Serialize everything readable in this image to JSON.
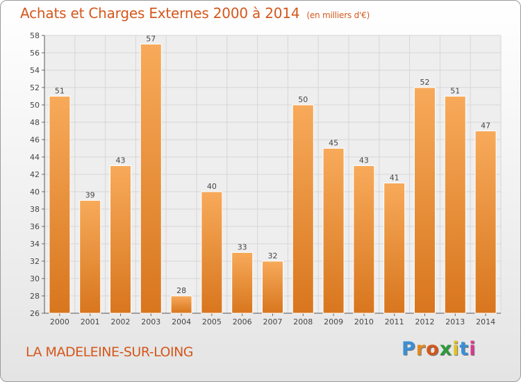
{
  "title": "Achats et Charges Externes 2000 à 2014",
  "subtitle": "(en milliers d'€)",
  "place": "LA MADELEINE-SUR-LOING",
  "logo": {
    "text": "Proxiti",
    "letter_colors": [
      "#3a8fd6",
      "#e2891f",
      "#d4571c",
      "#2e9a3a",
      "#e2c21f",
      "#3a8fd6",
      "#d63a8f"
    ]
  },
  "colors": {
    "bar_top": "#f7aa5a",
    "bar_bottom": "#d8761e",
    "accent": "#d4571c"
  },
  "chart_data": {
    "type": "bar",
    "categories": [
      "2000",
      "2001",
      "2002",
      "2003",
      "2004",
      "2005",
      "2006",
      "2007",
      "2008",
      "2009",
      "2010",
      "2011",
      "2012",
      "2013",
      "2014"
    ],
    "values": [
      51,
      39,
      43,
      57,
      28,
      40,
      33,
      32,
      50,
      45,
      43,
      41,
      52,
      51,
      47
    ],
    "ylim": [
      26,
      58
    ],
    "ytick_step": 2,
    "grid": true
  }
}
